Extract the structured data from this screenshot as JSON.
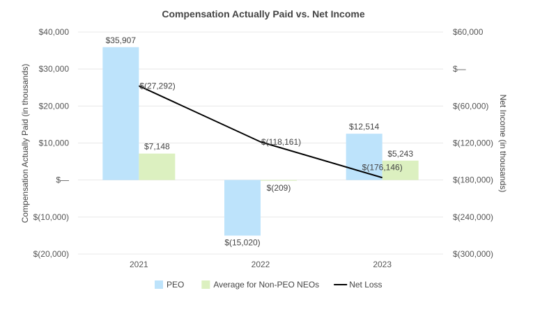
{
  "chart_data": {
    "type": "bar",
    "title": "Compensation Actually Paid vs. Net Income",
    "categories": [
      "2021",
      "2022",
      "2023"
    ],
    "ylabel": "Compensation Actually Paid (in thousands)",
    "y2label": "Net Income (in thousands)",
    "ylim": [
      -20000,
      40000
    ],
    "y2lim": [
      -300000,
      60000
    ],
    "yticks": [
      {
        "value": 40000,
        "label": "$40,000"
      },
      {
        "value": 30000,
        "label": "$30,000"
      },
      {
        "value": 20000,
        "label": "$20,000"
      },
      {
        "value": 10000,
        "label": "$10,000"
      },
      {
        "value": 0,
        "label": "$—"
      },
      {
        "value": -10000,
        "label": "$(10,000)"
      },
      {
        "value": -20000,
        "label": "$(20,000)"
      }
    ],
    "y2ticks": [
      {
        "value": 60000,
        "label": "$60,000"
      },
      {
        "value": 0,
        "label": "$—"
      },
      {
        "value": -60000,
        "label": "$(60,000)"
      },
      {
        "value": -120000,
        "label": "$(120,000)"
      },
      {
        "value": -180000,
        "label": "$(180,000)"
      },
      {
        "value": -240000,
        "label": "$(240,000)"
      },
      {
        "value": -300000,
        "label": "$(300,000)"
      }
    ],
    "grid": true,
    "legend_position": "bottom",
    "series": [
      {
        "name": "PEO",
        "kind": "bar",
        "axis": "left",
        "color": "#bde3fb",
        "values": [
          35907,
          -15020,
          12514
        ],
        "labels": [
          "$35,907",
          "$(15,020)",
          "$12,514"
        ]
      },
      {
        "name": "Average for Non-PEO NEOs",
        "kind": "bar",
        "axis": "left",
        "color": "#dcf0c0",
        "values": [
          7148,
          -209,
          5243
        ],
        "labels": [
          "$7,148",
          "$(209)",
          "$5,243"
        ]
      },
      {
        "name": "Net Loss",
        "kind": "line",
        "axis": "right",
        "color": "#000000",
        "values": [
          -27292,
          -118161,
          -176146
        ],
        "labels": [
          "$(27,292)",
          "$(118,161)",
          "$(176,146)"
        ]
      }
    ]
  }
}
